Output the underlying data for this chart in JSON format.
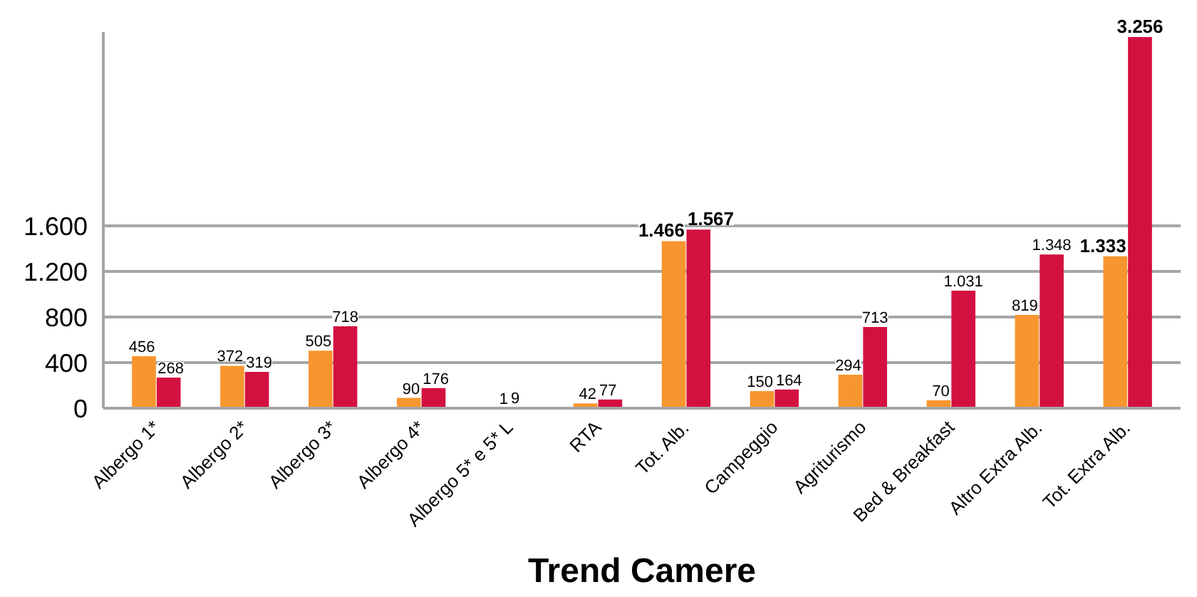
{
  "chart_data": {
    "type": "bar",
    "title": "Trend Camere",
    "categories": [
      "Albergo 1*",
      "Albergo 2*",
      "Albergo 3*",
      "Albergo 4*",
      "Albergo 5* e 5* L",
      "RTA",
      "Tot. Alb.",
      "Campeggio",
      "Agriturismo",
      "Bed & Breakfast",
      "Altro Extra Alb.",
      "Tot. Extra Alb."
    ],
    "series": [
      {
        "color": "#f7962f",
        "values": [
          456,
          372,
          505,
          90,
          1,
          42,
          1466,
          150,
          294,
          70,
          819,
          1333
        ],
        "value_labels": [
          "456",
          "372",
          "505",
          "90",
          "1",
          "42",
          "1.466",
          "150",
          "294",
          "70",
          "819",
          "1.333"
        ]
      },
      {
        "color": "#d31140",
        "values": [
          268,
          319,
          718,
          176,
          9,
          77,
          1567,
          164,
          713,
          1031,
          1348,
          3256
        ],
        "value_labels": [
          "268",
          "319",
          "718",
          "176",
          "9",
          "77",
          "1.567",
          "164",
          "713",
          "1.031",
          "1.348",
          "3.256"
        ]
      }
    ],
    "ylim": [
      0,
      3300
    ],
    "yticks": [
      0,
      400,
      800,
      {
        "value": 1200,
        "label": "1.200"
      },
      {
        "value": 1600,
        "label": "1.600"
      }
    ],
    "grid": "y"
  }
}
